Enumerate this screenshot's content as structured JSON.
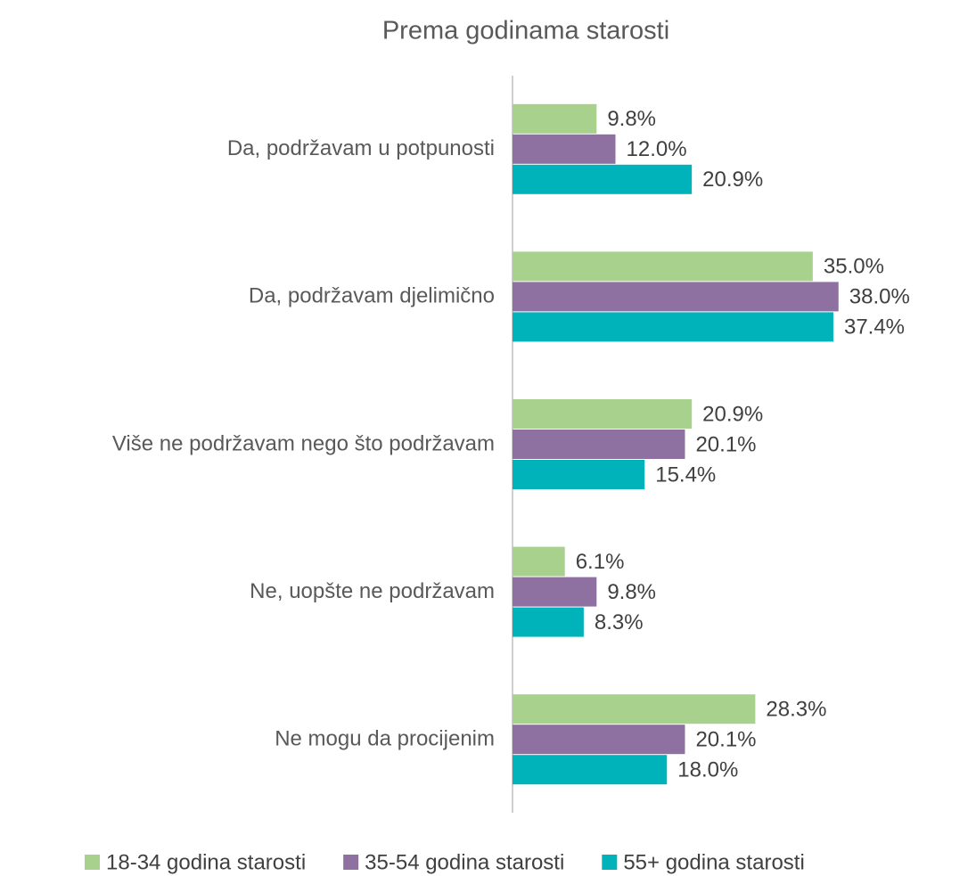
{
  "chart_data": {
    "type": "barh",
    "title": "Prema godinama starosti",
    "categories": [
      "Da, podržavam u potpunosti",
      "Da, podržavam djelimično",
      "Više ne podržavam nego što podržavam",
      "Ne, uopšte ne podržavam",
      "Ne mogu da procijenim"
    ],
    "series": [
      {
        "name": "18-34 godina starosti",
        "color": "#a9d18e",
        "values": [
          9.8,
          35.0,
          20.9,
          6.1,
          28.3
        ],
        "value_labels": [
          "9.8%",
          "35.0%",
          "20.9%",
          "6.1%",
          "28.3%"
        ]
      },
      {
        "name": "35-54 godina starosti",
        "color": "#8e71a0",
        "values": [
          12.0,
          38.0,
          20.1,
          9.8,
          20.1
        ],
        "value_labels": [
          "12.0%",
          "38.0%",
          "20.1%",
          "9.8%",
          "20.1%"
        ]
      },
      {
        "name": "55+ godina starosti",
        "color": "#00b2b9",
        "values": [
          20.9,
          37.4,
          15.4,
          8.3,
          18.0
        ],
        "value_labels": [
          "20.9%",
          "37.4%",
          "15.4%",
          "8.3%",
          "18.0%"
        ]
      }
    ],
    "xlim": [
      0,
      40
    ],
    "legend": "bottom"
  }
}
